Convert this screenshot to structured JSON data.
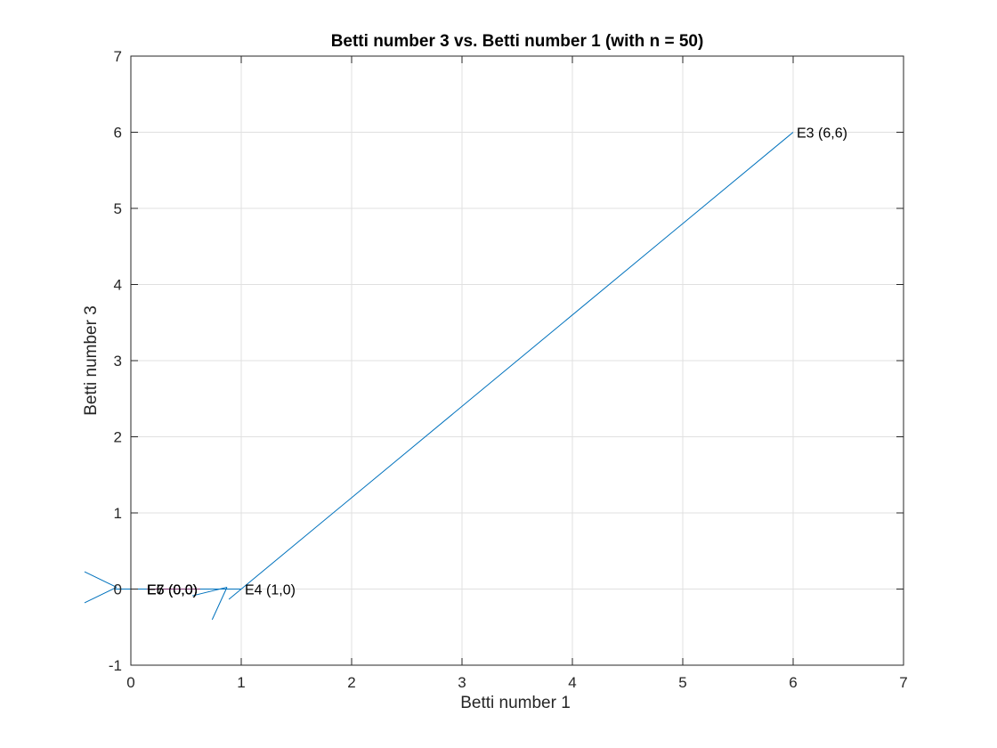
{
  "chart_data": {
    "type": "line",
    "title": "Betti number 3 vs. Betti number 1 (with n = 50)",
    "xlabel": "Betti number 1",
    "ylabel": "Betti number 3",
    "xlim": [
      0,
      7
    ],
    "ylim": [
      -1,
      7
    ],
    "xticks": [
      "0",
      "1",
      "2",
      "3",
      "4",
      "5",
      "6",
      "7"
    ],
    "yticks": [
      "-1",
      "0",
      "1",
      "2",
      "3",
      "4",
      "5",
      "6",
      "7"
    ],
    "grid": true,
    "line_color": "#0072BD",
    "series": [
      {
        "points": [
          {
            "x": 6,
            "y": 6,
            "label": "E3 (6,6)"
          },
          {
            "x": 1,
            "y": 0,
            "label": "E4 (1,0)"
          },
          {
            "x": 0,
            "y": 0,
            "label": "E5 (0,0)"
          },
          {
            "x": 0,
            "y": 0,
            "label": "E6 (0,0)"
          },
          {
            "x": 0,
            "y": 0,
            "label": "E7 (0,0)"
          }
        ]
      }
    ]
  }
}
